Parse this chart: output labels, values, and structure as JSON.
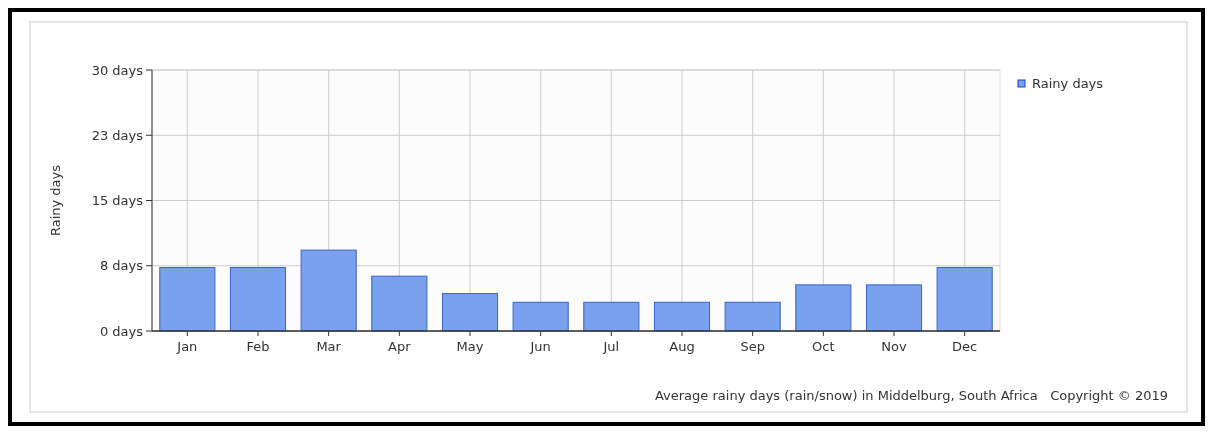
{
  "chart_data": {
    "type": "bar",
    "ylabel": "Rainy days",
    "categories": [
      "Jan",
      "Feb",
      "Mar",
      "Apr",
      "May",
      "Jun",
      "Jul",
      "Aug",
      "Sep",
      "Oct",
      "Nov",
      "Dec"
    ],
    "series": [
      {
        "name": "Rainy days",
        "color": "#7aa1ee",
        "values": [
          7.3,
          7.3,
          9.3,
          6.3,
          4.3,
          3.3,
          3.3,
          3.3,
          3.3,
          5.3,
          5.3,
          7.3
        ]
      }
    ],
    "ylim": [
      0,
      30
    ],
    "yticks": [
      {
        "value": 0,
        "label": "0 days"
      },
      {
        "value": 7.5,
        "label": "8 days"
      },
      {
        "value": 15,
        "label": "15 days"
      },
      {
        "value": 22.5,
        "label": "23 days"
      },
      {
        "value": 30,
        "label": "30 days"
      }
    ],
    "grid": true,
    "legend": "top right",
    "annotations": [
      "Average rainy days (rain/snow) in Middelburg, South Africa   Copyright © 2019"
    ]
  }
}
